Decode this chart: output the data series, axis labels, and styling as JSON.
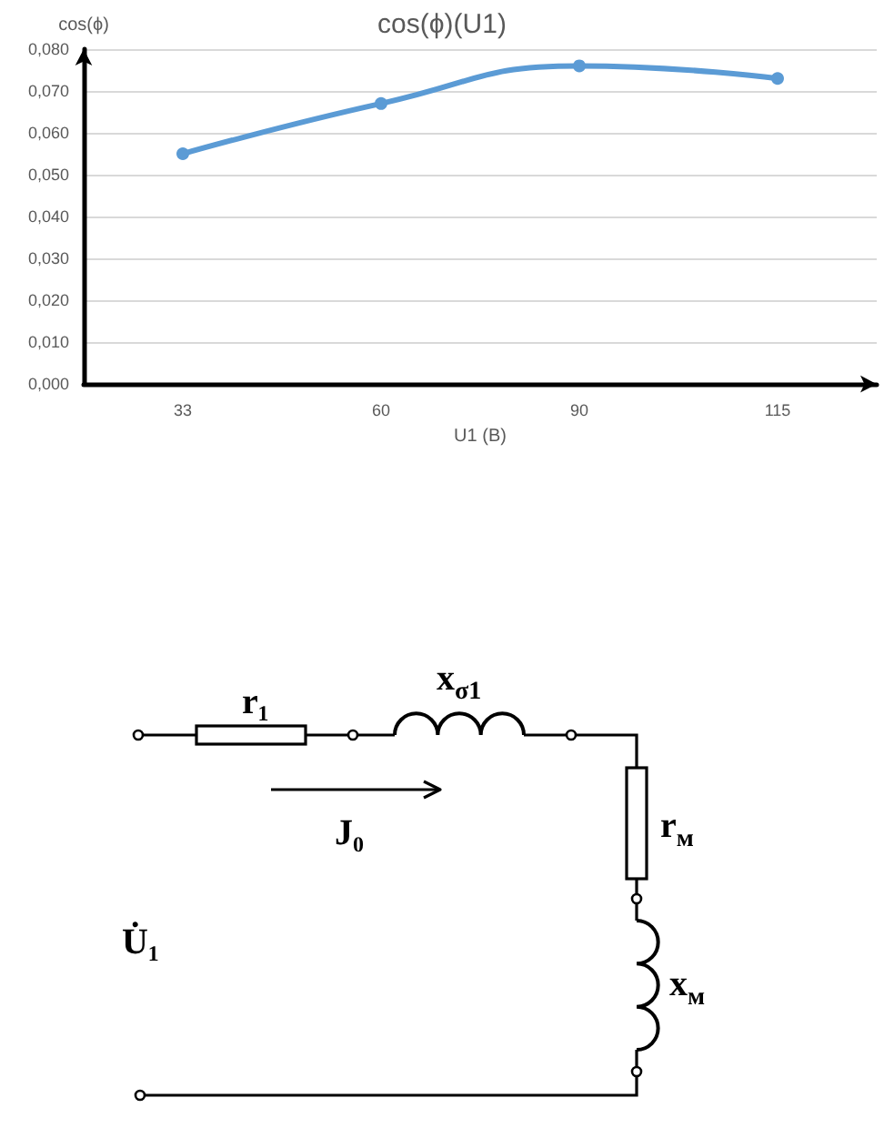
{
  "chart_data": [
    {
      "type": "line",
      "title": "cos(ϕ)(U1)",
      "xlabel": "U1 (В)",
      "ylabel": "cos(ϕ)",
      "categories": [
        "33",
        "60",
        "90",
        "115"
      ],
      "series": [
        {
          "color": "#5b9bd5",
          "values": [
            0.055,
            0.067,
            0.076,
            0.073
          ]
        }
      ],
      "ylim": [
        0,
        0.08
      ],
      "yticks": [
        {
          "value": 0,
          "label": "0,000"
        },
        {
          "value": 0.01,
          "label": "0,010"
        },
        {
          "value": 0.02,
          "label": "0,020"
        },
        {
          "value": 0.03,
          "label": "0,030"
        },
        {
          "value": 0.04,
          "label": "0,040"
        },
        {
          "value": 0.05,
          "label": "0,050"
        },
        {
          "value": 0.06,
          "label": "0,060"
        },
        {
          "value": 0.07,
          "label": "0,070"
        },
        {
          "value": 0.08,
          "label": "0,080"
        }
      ],
      "grid": "y",
      "marker": "circle",
      "line_style": "solid"
    },
    {
      "type": "other",
      "annotations": [
        "r₁",
        "x$_{σ1}$",
        "J₀",
        "r$_{м}$",
        "U̇₁",
        "x$_{м}$"
      ]
    }
  ]
}
